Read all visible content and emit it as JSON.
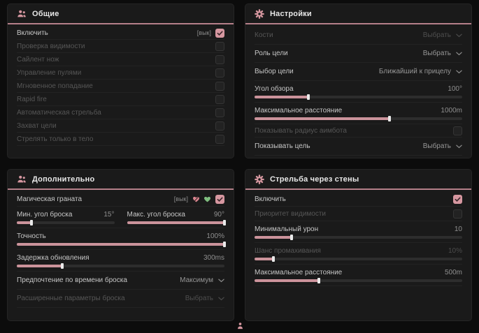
{
  "colors": {
    "accent": "#d697a0",
    "slider_fill": "#cb939b",
    "heart_green": "#7fbe7f",
    "heart_pink": "#d9848e",
    "header_divider": "#b5808a"
  },
  "footer": {
    "icon": "person-indicator-icon"
  },
  "panels": [
    {
      "id": "general",
      "title": "Общие",
      "icon": "people-icon",
      "rows": [
        {
          "type": "toggle",
          "label": "Включить",
          "tag": "[вык]",
          "checked": true,
          "enabled": true
        },
        {
          "type": "toggle",
          "label": "Проверка видимости",
          "checked": false,
          "enabled": false
        },
        {
          "type": "toggle",
          "label": "Сайлент нож",
          "checked": false,
          "enabled": false
        },
        {
          "type": "toggle",
          "label": "Управление пулями",
          "checked": false,
          "enabled": false
        },
        {
          "type": "toggle",
          "label": "Мгновенное попадание",
          "checked": false,
          "enabled": false
        },
        {
          "type": "toggle",
          "label": "Rapid fire",
          "checked": false,
          "enabled": false
        },
        {
          "type": "toggle",
          "label": "Автоматическая стрельба",
          "checked": false,
          "enabled": false
        },
        {
          "type": "toggle",
          "label": "Захват цели",
          "checked": false,
          "enabled": false
        },
        {
          "type": "toggle",
          "label": "Стрелять только в тело",
          "checked": false,
          "enabled": false
        }
      ]
    },
    {
      "id": "settings",
      "title": "Настройки",
      "icon": "gear-icon",
      "rows": [
        {
          "type": "dropdown",
          "label": "Кости",
          "value": "Выбрать",
          "enabled": false
        },
        {
          "type": "dropdown",
          "label": "Роль цели",
          "value": "Выбрать",
          "enabled": true
        },
        {
          "type": "dropdown",
          "label": "Выбор цели",
          "value": "Ближайший к прицелу",
          "enabled": true
        },
        {
          "type": "slider",
          "label": "Угол обзора",
          "value": "100°",
          "percent": 26,
          "enabled": true
        },
        {
          "type": "slider",
          "label": "Максимальное расстояние",
          "value": "1000m",
          "percent": 65,
          "enabled": true
        },
        {
          "type": "toggle",
          "label": "Показывать радиус аимбота",
          "checked": false,
          "enabled": false
        },
        {
          "type": "dropdown",
          "label": "Показывать цель",
          "value": "Выбрать",
          "enabled": true
        }
      ]
    },
    {
      "id": "additional",
      "title": "Дополнительно",
      "icon": "people-icon",
      "rows": [
        {
          "type": "grenade",
          "label": "Магическая граната",
          "tag": "[вык]",
          "icons": [
            "broken-heart-icon",
            "heart-icon"
          ],
          "checked": true,
          "enabled": true
        },
        {
          "type": "pair",
          "enabled": true,
          "sliders": [
            {
              "label": "Мин. угол броска",
              "value": "15°",
              "percent": 15
            },
            {
              "label": "Макс. угол броска",
              "value": "90°",
              "percent": 100
            }
          ]
        },
        {
          "type": "slider",
          "label": "Точность",
          "value": "100%",
          "percent": 100,
          "enabled": true
        },
        {
          "type": "slider",
          "label": "Задержка обновления",
          "value": "300ms",
          "percent": 22,
          "enabled": true
        },
        {
          "type": "dropdown",
          "label": "Предпочтение по времени броска",
          "value": "Максимум",
          "enabled": true
        },
        {
          "type": "dropdown",
          "label": "Расширенные параметры броска",
          "value": "Выбрать",
          "enabled": false
        }
      ]
    },
    {
      "id": "wallshoot",
      "title": "Стрельба через стены",
      "icon": "gear-icon",
      "rows": [
        {
          "type": "toggle",
          "label": "Включить",
          "checked": true,
          "enabled": true,
          "tall": true
        },
        {
          "type": "toggle",
          "label": "Приоритет видимости",
          "checked": false,
          "enabled": false,
          "tall": true
        },
        {
          "type": "slider",
          "label": "Минимальный урон",
          "value": "10",
          "percent": 18,
          "enabled": true
        },
        {
          "type": "slider",
          "label": "Шанс промахивания",
          "value": "10%",
          "percent": 9,
          "enabled": false
        },
        {
          "type": "slider",
          "label": "Максимальное расстояние",
          "value": "500m",
          "percent": 31,
          "enabled": true
        }
      ]
    }
  ]
}
